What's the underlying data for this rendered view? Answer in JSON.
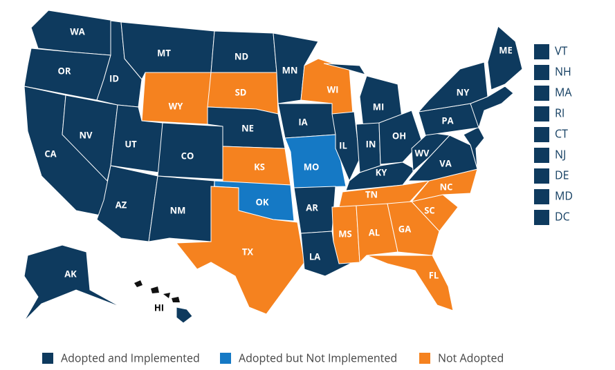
{
  "legend": [
    {
      "label": "Adopted and Implemented",
      "color": "#0e3a5e"
    },
    {
      "label": "Adopted but Not Implemented",
      "color": "#1579c5"
    },
    {
      "label": "Not Adopted",
      "color": "#f5821f"
    }
  ],
  "states": [
    {
      "label": "WA",
      "status": 0
    },
    {
      "label": "OR",
      "status": 0
    },
    {
      "label": "CA",
      "status": 0
    },
    {
      "label": "NV",
      "status": 0
    },
    {
      "label": "ID",
      "status": 0
    },
    {
      "label": "MT",
      "status": 0
    },
    {
      "label": "WY",
      "status": 2
    },
    {
      "label": "UT",
      "status": 0
    },
    {
      "label": "CO",
      "status": 0
    },
    {
      "label": "AZ",
      "status": 0
    },
    {
      "label": "NM",
      "status": 0
    },
    {
      "label": "ND",
      "status": 0
    },
    {
      "label": "SD",
      "status": 2
    },
    {
      "label": "NE",
      "status": 0
    },
    {
      "label": "KS",
      "status": 2
    },
    {
      "label": "OK",
      "status": 1
    },
    {
      "label": "TX",
      "status": 2
    },
    {
      "label": "MN",
      "status": 0
    },
    {
      "label": "IA",
      "status": 0
    },
    {
      "label": "MO",
      "status": 1
    },
    {
      "label": "AR",
      "status": 0
    },
    {
      "label": "LA",
      "status": 0
    },
    {
      "label": "WI",
      "status": 2
    },
    {
      "label": "IL",
      "status": 0
    },
    {
      "label": "MI",
      "status": 0
    },
    {
      "label": "IN",
      "status": 0
    },
    {
      "label": "OH",
      "status": 0
    },
    {
      "label": "KY",
      "status": 0
    },
    {
      "label": "TN",
      "status": 2
    },
    {
      "label": "MS",
      "status": 2
    },
    {
      "label": "AL",
      "status": 2
    },
    {
      "label": "GA",
      "status": 2
    },
    {
      "label": "FL",
      "status": 2
    },
    {
      "label": "SC",
      "status": 2
    },
    {
      "label": "NC",
      "status": 2
    },
    {
      "label": "VA",
      "status": 0
    },
    {
      "label": "WV",
      "status": 0
    },
    {
      "label": "PA",
      "status": 0
    },
    {
      "label": "NY",
      "status": 0
    },
    {
      "label": "ME",
      "status": 0
    },
    {
      "label": "AK",
      "status": 0
    },
    {
      "label": "HI",
      "status": 0
    }
  ],
  "small_states": [
    {
      "label": "VT",
      "status": 0
    },
    {
      "label": "NH",
      "status": 0
    },
    {
      "label": "MA",
      "status": 0
    },
    {
      "label": "RI",
      "status": 0
    },
    {
      "label": "CT",
      "status": 0
    },
    {
      "label": "NJ",
      "status": 0
    },
    {
      "label": "DE",
      "status": 0
    },
    {
      "label": "MD",
      "status": 0
    },
    {
      "label": "DC",
      "status": 0
    }
  ]
}
